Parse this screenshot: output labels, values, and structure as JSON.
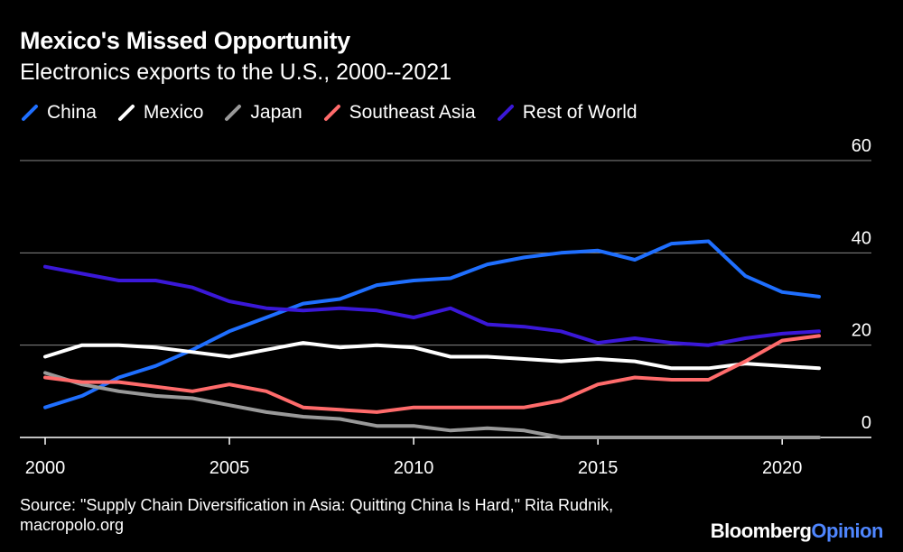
{
  "header": {
    "title": "Mexico's Missed Opportunity",
    "subtitle": "Electronics exports to the U.S., 2000--2021"
  },
  "footer": {
    "source": "Source: \"Supply Chain Diversification in Asia: Quitting China Is Hard,\" Rita Rudnik, macropolo.org",
    "brand_part1": "Bloomberg",
    "brand_part2": "Opinion"
  },
  "colors": {
    "background": "#000000",
    "grid": "#888888",
    "axis": "#ffffff",
    "brand_accent": "#4f86ff"
  },
  "chart_data": {
    "type": "line",
    "title": "Mexico's Missed Opportunity",
    "subtitle": "Electronics exports to the U.S., 2000--2021",
    "xlabel": "",
    "ylabel": "",
    "x": [
      2000,
      2001,
      2002,
      2003,
      2004,
      2005,
      2006,
      2007,
      2008,
      2009,
      2010,
      2011,
      2012,
      2013,
      2014,
      2015,
      2016,
      2017,
      2018,
      2019,
      2020,
      2021
    ],
    "xlim": [
      2000,
      2021
    ],
    "ylim": [
      0,
      60
    ],
    "xticks": [
      2000,
      2005,
      2010,
      2015,
      2020
    ],
    "yticks": [
      0,
      20,
      40,
      60
    ],
    "grid": true,
    "legend_position": "top-left",
    "series": [
      {
        "name": "China",
        "color": "#1f6fff",
        "values": [
          6.5,
          9,
          13,
          15.5,
          19,
          23,
          26,
          29,
          30,
          33,
          34,
          34.5,
          37.5,
          39,
          40,
          40.5,
          38.5,
          42,
          42.5,
          35,
          31.5,
          30.5
        ]
      },
      {
        "name": "Mexico",
        "color": "#ffffff",
        "values": [
          17.5,
          20,
          20,
          19.5,
          18.5,
          17.5,
          19,
          20.5,
          19.5,
          20,
          19.5,
          17.5,
          17.5,
          17,
          16.5,
          17,
          16.5,
          15,
          15,
          16,
          15.5,
          15
        ]
      },
      {
        "name": "Japan",
        "color": "#999999",
        "values": [
          14,
          11.5,
          10,
          9,
          8.5,
          7,
          5.5,
          4.5,
          4,
          2.5,
          2.5,
          1.5,
          2,
          1.5,
          0,
          0,
          0,
          0,
          0,
          0,
          0,
          0
        ]
      },
      {
        "name": "Southeast Asia",
        "color": "#ff6b6b",
        "values": [
          13,
          12,
          12,
          11,
          10,
          11.5,
          10,
          6.5,
          6,
          5.5,
          6.5,
          6.5,
          6.5,
          6.5,
          8,
          11.5,
          13,
          12.5,
          12.5,
          16.5,
          21,
          22
        ]
      },
      {
        "name": "Rest of World",
        "color": "#3a18d8",
        "values": [
          37,
          35.5,
          34,
          34,
          32.5,
          29.5,
          28,
          27.5,
          28,
          27.5,
          26,
          28,
          24.5,
          24,
          23,
          20.5,
          21.5,
          20.5,
          20,
          21.5,
          22.5,
          23
        ]
      }
    ]
  }
}
